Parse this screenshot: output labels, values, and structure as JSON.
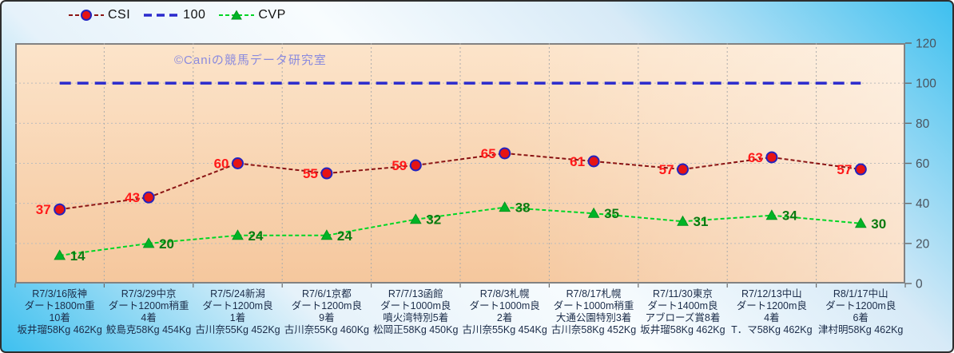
{
  "chart_data": {
    "type": "line",
    "title": "",
    "watermark": "©Caniの競馬データ研究室",
    "ylim": [
      0,
      120
    ],
    "yticks": [
      0,
      20,
      40,
      60,
      80,
      100,
      120
    ],
    "grid": true,
    "legend_position": "top-left",
    "categories": [
      [
        "R7/3/16阪神",
        "ダート1800m重",
        "10着",
        "坂井瑠58Kg 462Kg"
      ],
      [
        "R7/3/29中京",
        "ダート1200m稍重",
        "4着",
        "鮫島克58Kg 454Kg"
      ],
      [
        "R7/5/24新潟",
        "ダート1200m良",
        "1着",
        "古川奈55Kg 452Kg"
      ],
      [
        "R7/6/1京都",
        "ダート1200m良",
        "9着",
        "古川奈55Kg 460Kg"
      ],
      [
        "R7/7/13函館",
        "ダート1000m良",
        "噴火湾特別5着",
        "松岡正58Kg 450Kg"
      ],
      [
        "R7/8/3札幌",
        "ダート1000m良",
        "2着",
        "古川奈55Kg 454Kg"
      ],
      [
        "R7/8/17札幌",
        "ダート1000m稍重",
        "大通公園特別3着",
        "古川奈58Kg 452Kg"
      ],
      [
        "R7/11/30東京",
        "ダート1400m良",
        "アブローズ賞8着",
        "坂井瑠58Kg 462Kg"
      ],
      [
        "R7/12/13中山",
        "ダート1200m良",
        "4着",
        "T．マ58Kg 462Kg"
      ],
      [
        "R8/1/17中山",
        "ダート1200m良",
        "6着",
        "津村明58Kg 462Kg"
      ]
    ],
    "series": [
      {
        "name": "CSI",
        "values": [
          37,
          43,
          60,
          55,
          59,
          65,
          61,
          57,
          63,
          57
        ],
        "line_color": "#8b1414",
        "line_width": 2,
        "dash": "5 3",
        "marker": "circle",
        "marker_fill": "#e61414",
        "marker_stroke": "#2323bf",
        "show_labels": true,
        "label_color": "#ff1a1a",
        "label_side": "left"
      },
      {
        "name": "100",
        "values": [
          100,
          100,
          100,
          100,
          100,
          100,
          100,
          100,
          100,
          100
        ],
        "line_color": "#2a2acd",
        "line_width": 3.5,
        "dash": "14 8",
        "marker": "none",
        "show_labels": false
      },
      {
        "name": "CVP",
        "values": [
          14,
          20,
          24,
          24,
          32,
          38,
          35,
          31,
          34,
          30
        ],
        "line_color": "#00d626",
        "line_width": 2,
        "dash": "5 3",
        "marker": "triangle",
        "marker_fill": "#00b426",
        "marker_stroke": "#00961e",
        "show_labels": true,
        "label_color": "#0a7a10",
        "label_side": "right"
      }
    ],
    "colors": {
      "grid_h": "#bcbcbc",
      "grid_v": "#ababab",
      "tick": "#6b6b6b",
      "y_tick_label": "#4a545e",
      "x_label": "#1b2c49",
      "watermark": "#8a8ade"
    }
  }
}
